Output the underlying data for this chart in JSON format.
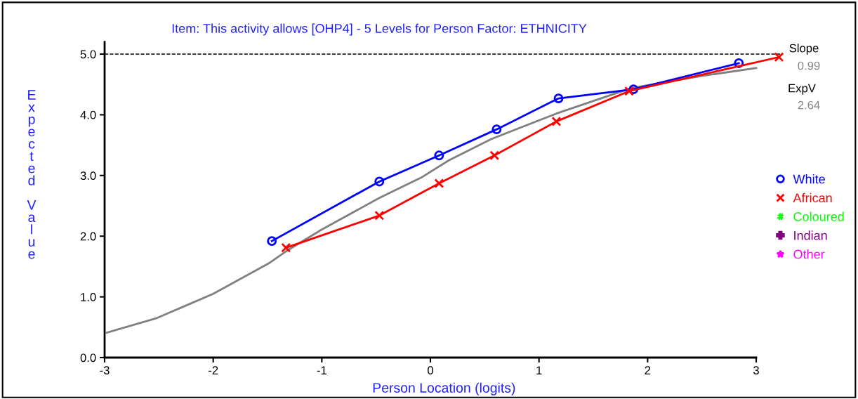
{
  "chart_data": {
    "type": "line",
    "title": "Item: This activity allows [OHP4] - 5 Levels for Person Factor: ETHNICITY",
    "xlabel": "Person Location (logits)",
    "ylabel": "Expected Value",
    "xlim": [
      -3,
      3.25
    ],
    "xticks": [
      -3,
      -2,
      -1,
      0,
      1,
      2,
      3
    ],
    "ylim": [
      0,
      5.2
    ],
    "yticks": [
      {
        "value": 0,
        "label": "0.0"
      },
      {
        "value": 1,
        "label": "1.0"
      },
      {
        "value": 2,
        "label": "2.0"
      },
      {
        "value": 3,
        "label": "3.0"
      },
      {
        "value": 4,
        "label": "4.0"
      },
      {
        "value": 5,
        "label": "5.0"
      }
    ],
    "grid": false,
    "legend": "right",
    "ref_lines": [
      {
        "axis": "y",
        "value": 5,
        "label": null,
        "color": "#000000",
        "line_style": "dashed"
      }
    ],
    "annotations": [
      "Slope",
      "0.99",
      "ExpV",
      "2.64"
    ],
    "series": [
      {
        "color": "#808080",
        "marker": "none",
        "x": [
          -2.98,
          -2.52,
          -2.0,
          -1.49,
          -1.33,
          -1.0,
          -0.47,
          -0.08,
          0.17,
          0.56,
          1.16,
          1.85,
          2.5,
          3.0
        ],
        "values": [
          0.41,
          0.65,
          1.05,
          1.55,
          1.75,
          2.11,
          2.63,
          2.97,
          3.25,
          3.6,
          4.02,
          4.44,
          4.64,
          4.77
        ]
      },
      {
        "name": "White",
        "color": "#0000ff",
        "marker": "circle",
        "x": [
          -1.46,
          -0.47,
          0.08,
          0.61,
          1.18,
          1.87,
          2.84
        ],
        "values": [
          1.92,
          2.9,
          3.33,
          3.76,
          4.27,
          4.42,
          4.85
        ]
      },
      {
        "name": "African",
        "color": "#ff0000",
        "marker": "cross",
        "x": [
          -1.33,
          -0.47,
          0.08,
          0.59,
          1.16,
          1.83,
          3.21
        ],
        "values": [
          1.81,
          2.34,
          2.87,
          3.33,
          3.89,
          4.39,
          4.95
        ]
      },
      {
        "name": "Coloured",
        "color": "#00ff00",
        "marker": "hash"
      },
      {
        "name": "Indian",
        "color": "#800080",
        "marker": "plus"
      },
      {
        "name": "Other",
        "color": "#ff00ff",
        "marker": "star"
      }
    ]
  }
}
